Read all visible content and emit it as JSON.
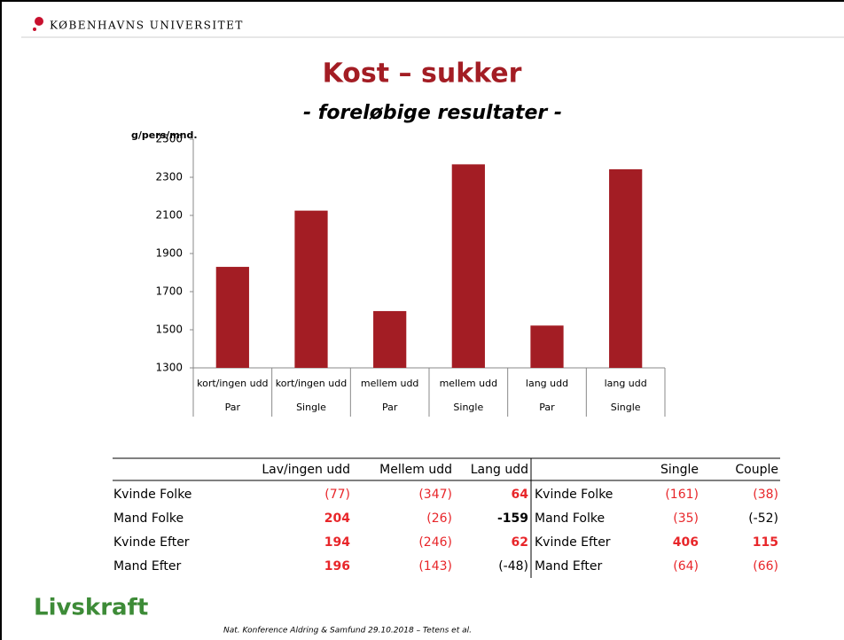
{
  "header": {
    "institution": "KØBENHAVNS UNIVERSITET"
  },
  "chart_data": {
    "type": "bar",
    "title": "Kost – sukker",
    "subtitle": "- foreløbige resultater -",
    "y_label": "g/pers/mnd.",
    "categories": [
      "kort/ingen udd",
      "kort/ingen udd",
      "mellem udd",
      "mellem udd",
      "lang udd",
      "lang udd"
    ],
    "groups": [
      "Par",
      "Single",
      "Par",
      "Single",
      "Par",
      "Single"
    ],
    "values": [
      1830,
      2125,
      1598,
      2368,
      1522,
      2342
    ],
    "color": "#a31d24",
    "ylim": [
      1300,
      2500
    ],
    "yticks": [
      1300,
      1500,
      1700,
      1900,
      2100,
      2300,
      2500
    ],
    "grid": false
  },
  "table": {
    "header": [
      "Lav/ingen udd",
      "Mellem udd",
      "Lang udd",
      "Single",
      "Couple"
    ],
    "rows": [
      [
        {
          "text": "Kvinde Folke",
          "color": "#000000",
          "bold": false
        },
        {
          "text": "(77)",
          "color": "#e8262a",
          "bold": false
        },
        {
          "text": "(347)",
          "color": "#e8262a",
          "bold": false
        },
        {
          "text": "64",
          "color": "#e8262a",
          "bold": true
        },
        {
          "text": "Kvinde Folke",
          "color": "#000000",
          "bold": false
        },
        {
          "text": "(161)",
          "color": "#e8262a",
          "bold": false
        },
        {
          "text": "(38)",
          "color": "#e8262a",
          "bold": false
        }
      ],
      [
        {
          "text": "Mand Folke",
          "color": "#000000",
          "bold": false
        },
        {
          "text": "204",
          "color": "#e8262a",
          "bold": true
        },
        {
          "text": "(26)",
          "color": "#e8262a",
          "bold": false
        },
        {
          "text": "-159",
          "color": "#000000",
          "bold": true
        },
        {
          "text": "Mand Folke",
          "color": "#000000",
          "bold": false
        },
        {
          "text": "(35)",
          "color": "#e8262a",
          "bold": false
        },
        {
          "text": "(-52)",
          "color": "#000000",
          "bold": false
        }
      ],
      [
        {
          "text": "Kvinde Efter",
          "color": "#000000",
          "bold": false
        },
        {
          "text": "194",
          "color": "#e8262a",
          "bold": true
        },
        {
          "text": "(246)",
          "color": "#e8262a",
          "bold": false
        },
        {
          "text": "62",
          "color": "#e8262a",
          "bold": true
        },
        {
          "text": "Kvinde Efter",
          "color": "#000000",
          "bold": false
        },
        {
          "text": "406",
          "color": "#e8262a",
          "bold": true
        },
        {
          "text": "115",
          "color": "#e8262a",
          "bold": true
        }
      ],
      [
        {
          "text": "Mand Efter",
          "color": "#000000",
          "bold": false
        },
        {
          "text": "196",
          "color": "#e8262a",
          "bold": true
        },
        {
          "text": "(143)",
          "color": "#e8262a",
          "bold": false
        },
        {
          "text": "(-48)",
          "color": "#000000",
          "bold": false
        },
        {
          "text": "Mand Efter",
          "color": "#000000",
          "bold": false
        },
        {
          "text": "(64)",
          "color": "#e8262a",
          "bold": false
        },
        {
          "text": "(66)",
          "color": "#e8262a",
          "bold": false
        }
      ]
    ]
  },
  "footer": {
    "logo": "Livskraft",
    "note": "Nat. Konference Aldring & Samfund  29.10.2018 – Tetens et al."
  }
}
